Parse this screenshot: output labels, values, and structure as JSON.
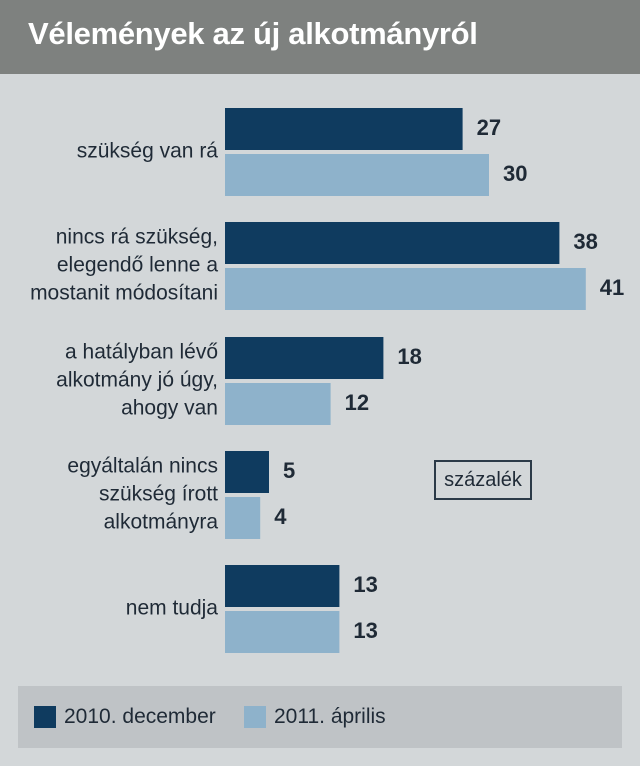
{
  "title": "Vélemények az új alkotmányról",
  "unit_label": "százalék",
  "colors": {
    "title_bg": "#7e817f",
    "panel_bg": "#d3d7d9",
    "legend_bg": "#bfc3c6",
    "series_dark": "#0f3b5f",
    "series_light": "#8eb2cb",
    "text": "#1f2a36"
  },
  "chart_data": {
    "type": "bar",
    "orientation": "horizontal",
    "title": "Vélemények az új alkotmányról",
    "unit": "százalék",
    "categories": [
      [
        "szükség van rá"
      ],
      [
        "nincs rá szükség,",
        "elegendő lenne a",
        "mostanit módosítani"
      ],
      [
        "a hatályban lévő",
        "alkotmány jó úgy,",
        "ahogy van"
      ],
      [
        "egyáltalán nincs",
        "szükség írott",
        "alkotmányra"
      ],
      [
        "nem tudja"
      ]
    ],
    "series": [
      {
        "name": "2010. december",
        "values": [
          27,
          38,
          18,
          5,
          13
        ],
        "color": "#0f3b5f"
      },
      {
        "name": "2011. április",
        "values": [
          30,
          41,
          12,
          4,
          13
        ],
        "color": "#8eb2cb"
      }
    ],
    "data_labels": true,
    "legend_position": "bottom",
    "grid": false
  }
}
